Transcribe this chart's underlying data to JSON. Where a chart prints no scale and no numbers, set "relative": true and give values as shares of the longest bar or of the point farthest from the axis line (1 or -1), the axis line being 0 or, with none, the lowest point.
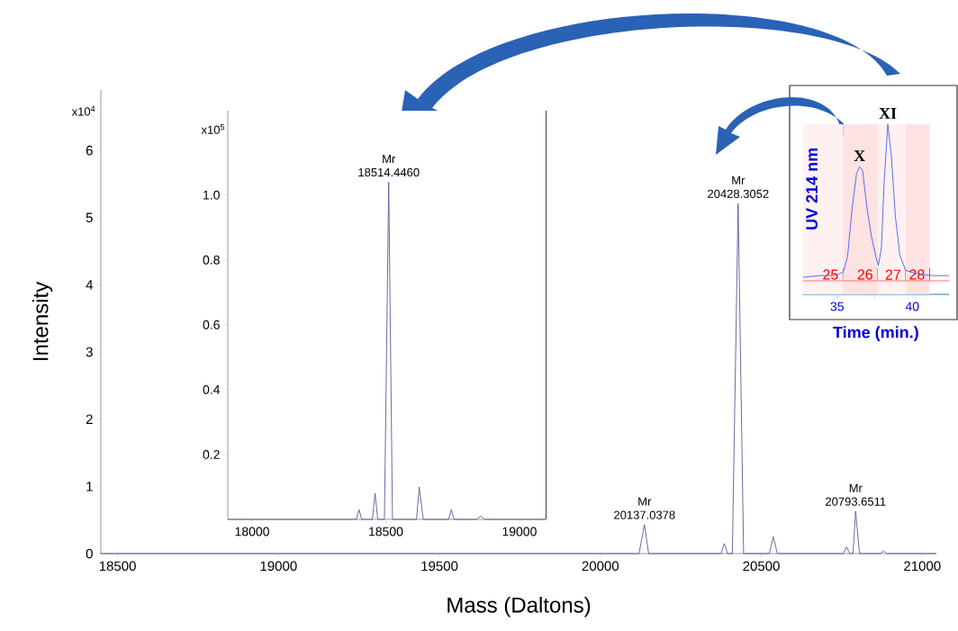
{
  "chart_data": [
    {
      "type": "line",
      "xlabel": "Mass (Daltons)",
      "ylabel": "Intensity",
      "color": "#5a5a96",
      "x": [
        18448,
        20120,
        20137,
        20150,
        20375,
        20385,
        20395,
        20410,
        20428,
        20445,
        20525,
        20537,
        20550,
        20755,
        20765,
        20775,
        20785,
        20793,
        20805,
        20870,
        20880,
        20890,
        21044
      ],
      "values": [
        0,
        0,
        0.43,
        0,
        0,
        0.15,
        0,
        0,
        5.21,
        0,
        0,
        0.25,
        0,
        0,
        0.1,
        0,
        0,
        0.63,
        0,
        0,
        0.04,
        0,
        0
      ],
      "xlim": [
        18448,
        21044
      ],
      "ylim": [
        0,
        6.9
      ],
      "xticks": [
        18500,
        19000,
        19500,
        20000,
        20500,
        21000
      ],
      "yticks": [
        0,
        1,
        2,
        3,
        4,
        5,
        6
      ],
      "annotations": [
        "x10$^{4}$",
        {
          "text": "Mr 20137.0378",
          "x": 20137,
          "y": 0.43
        },
        {
          "text": "Mr 20428.3052",
          "x": 20428,
          "y": 5.21
        },
        {
          "text": "Mr 20793.6511",
          "x": 20793,
          "y": 0.63
        }
      ]
    },
    {
      "type": "line",
      "color": "#5a5a96",
      "x": [
        17909,
        18390,
        18400,
        18410,
        18450,
        18460,
        18470,
        18495,
        18511,
        18525,
        18615,
        18625,
        18640,
        18735,
        18745,
        18755,
        18840,
        18855,
        18870,
        19098
      ],
      "values": [
        0,
        0,
        0.03,
        0,
        0,
        0.08,
        0,
        0,
        1.04,
        0,
        0,
        0.1,
        0,
        0,
        0.03,
        0,
        0,
        0.01,
        0,
        0
      ],
      "xlim": [
        17909,
        19098
      ],
      "ylim": [
        0,
        1.26
      ],
      "xticks": [
        18000,
        18500,
        19000
      ],
      "yticks": [
        0.2,
        0.4,
        0.6,
        0.8,
        {
          "value": 1,
          "label": "1.0"
        }
      ],
      "annotations": [
        "x10$^{5}$",
        {
          "text": "Mr 18514.4460",
          "x": 18511,
          "y": 1.04
        }
      ]
    },
    {
      "type": "line",
      "relative": true,
      "xlabel": "Time (min.)",
      "ylabel": "UV 214 nm",
      "color": "#4a5cf0",
      "x": [
        32.72,
        33.81,
        34.8,
        35.4,
        35.69,
        35.99,
        36.29,
        36.49,
        36.69,
        36.98,
        37.28,
        37.58,
        37.74,
        37.94,
        38.13,
        38.37,
        38.61,
        38.87,
        39.17,
        39.56,
        40.36,
        41.35,
        42.44
      ],
      "values": [
        0.1,
        0.11,
        0.11,
        0.13,
        0.22,
        0.5,
        0.71,
        0.75,
        0.73,
        0.51,
        0.34,
        0.22,
        0.17,
        0.27,
        0.67,
        1.0,
        0.81,
        0.46,
        0.23,
        0.14,
        0.12,
        0.11,
        0.11
      ],
      "xlim": [
        32.72,
        42.44
      ],
      "xticks": [
        35,
        {
          "value": 37.5,
          "label": null
        },
        40
      ],
      "annotations": [
        {
          "text": "X",
          "x": 36.49,
          "y": 0.75
        },
        {
          "text": "XI",
          "x": 38.37,
          "y": 1.0
        }
      ],
      "bands": [
        {
          "axis": "x",
          "from": 32.72,
          "to": 35.4,
          "label": "25",
          "color": "#fff1f1"
        },
        {
          "axis": "x",
          "from": 35.4,
          "to": 37.7,
          "label": "26",
          "color": "#ffe2e2"
        },
        {
          "axis": "x",
          "from": 37.7,
          "to": 39.56,
          "label": "27",
          "color": "#fff1f1"
        },
        {
          "axis": "x",
          "from": 39.56,
          "to": 41.15,
          "label": "28",
          "color": "#ffe2e2"
        }
      ],
      "ref_lines": [
        {
          "axis": "y",
          "value": 0.08,
          "color": "#ff7070"
        }
      ]
    }
  ]
}
